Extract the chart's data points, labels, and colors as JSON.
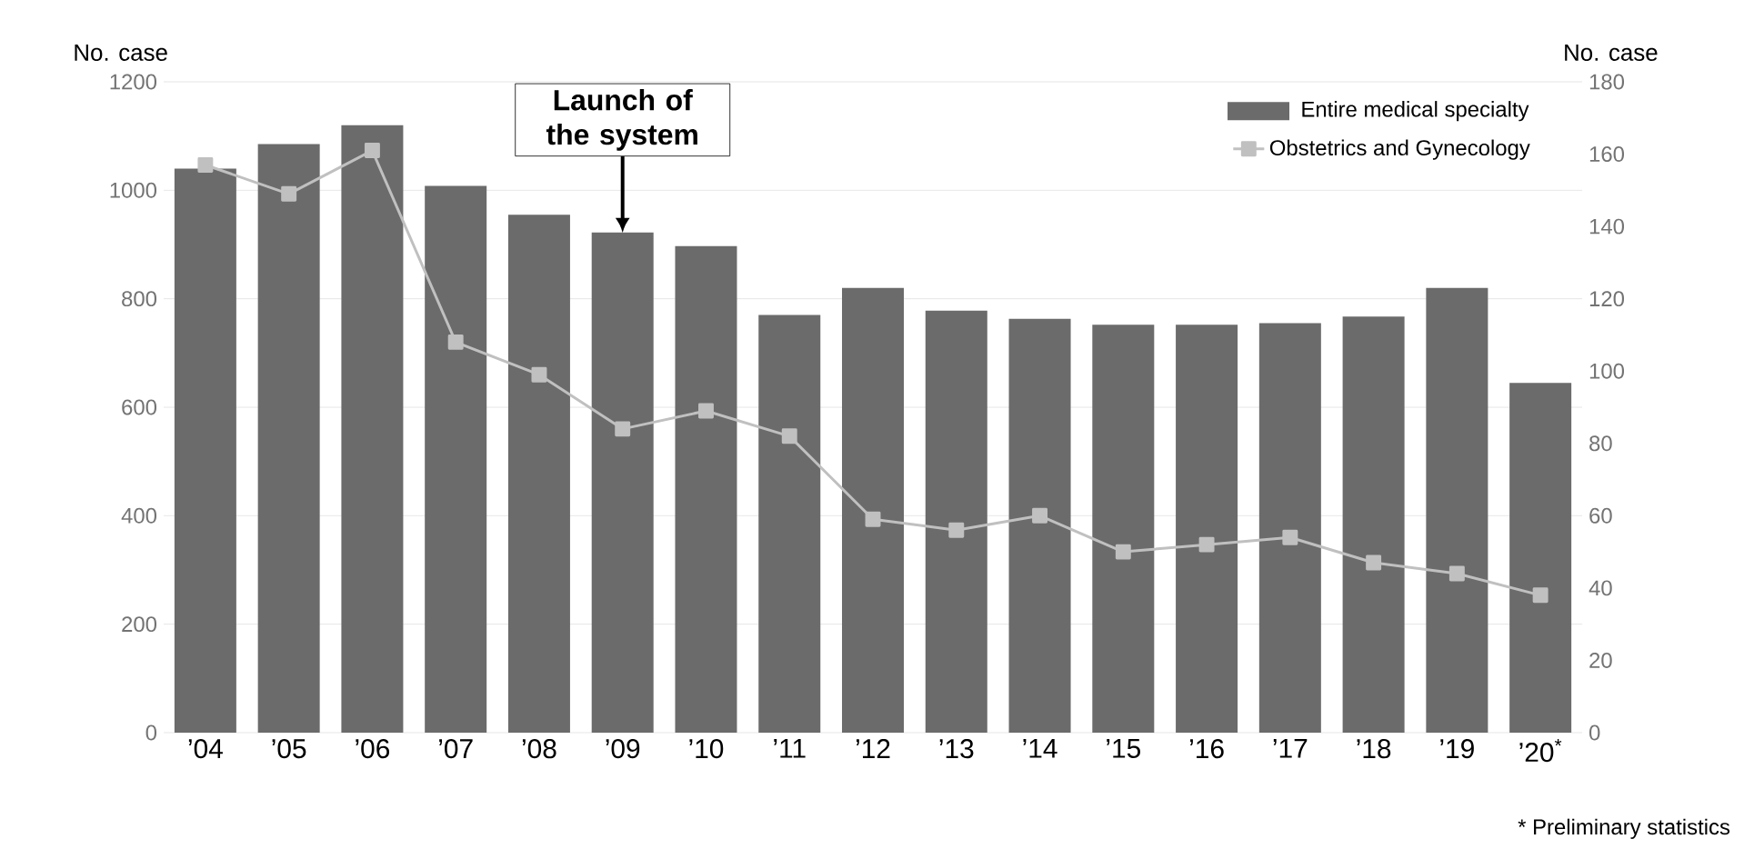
{
  "chart_data": {
    "type": "bar",
    "categories": [
      "’04",
      "’05",
      "’06",
      "’07",
      "’08",
      "’09",
      "’10",
      "’11",
      "’12",
      "’13",
      "’14",
      "’15",
      "’16",
      "’17",
      "’18",
      "’19",
      "’20$^{*}$"
    ],
    "series": [
      {
        "name": "Entire medical specialty",
        "color": "#6b6b6b",
        "values": [
          1040,
          1085,
          1120,
          1008,
          955,
          922,
          897,
          770,
          820,
          778,
          763,
          752,
          752,
          755,
          767,
          820,
          645
        ]
      },
      {
        "name": "Obstetrics and Gynecology",
        "type": "line",
        "axis": "y2",
        "color": "#c0c0c0",
        "marker": "square",
        "values": [
          157,
          149,
          161,
          108,
          99,
          84,
          89,
          82,
          59,
          56,
          60,
          50,
          52,
          54,
          47,
          44,
          38
        ]
      }
    ],
    "ylabel": "No. case",
    "y2label": "No. case",
    "ylim": [
      0,
      1200
    ],
    "yticks": [
      0,
      200,
      400,
      600,
      800,
      1000,
      1200
    ],
    "y2lim": [
      0,
      180
    ],
    "y2ticks": [
      0,
      20,
      40,
      60,
      80,
      100,
      120,
      140,
      160,
      180
    ],
    "grid": "y",
    "legend": "top right",
    "annotations": [
      {
        "text": "Launch of the system",
        "x": "’09",
        "y": 922
      },
      "* Preliminary statistics"
    ]
  }
}
